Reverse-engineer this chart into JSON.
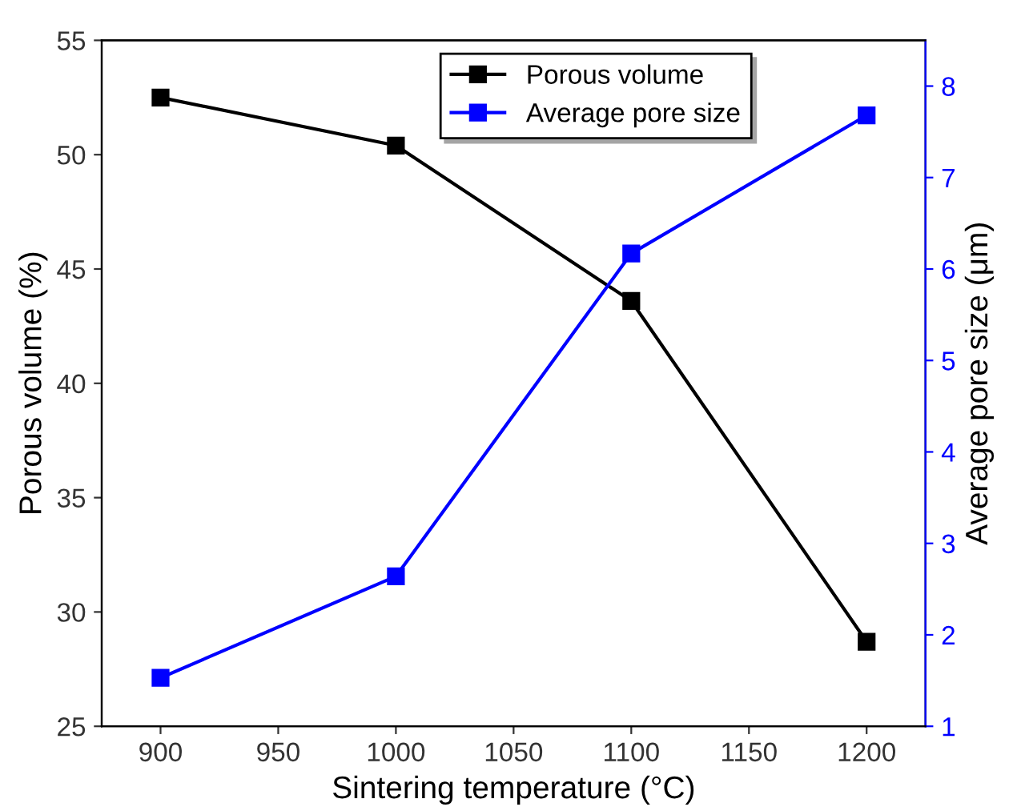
{
  "chart_data": {
    "type": "line",
    "xlabel": "Sintering temperature (°C)",
    "ylabel": "Porous volume (%)",
    "y2label": "Average pore size (μm)",
    "x": [
      900,
      1000,
      1100,
      1200
    ],
    "series": [
      {
        "name": "Porous volume",
        "color": "#000000",
        "values": [
          52.5,
          50.4,
          43.6,
          28.7
        ]
      },
      {
        "name": "Average pore size",
        "color": "#0000ff",
        "axis": "y2",
        "values": [
          1.53,
          2.64,
          6.17,
          7.68
        ]
      }
    ],
    "xlim": [
      875,
      1225
    ],
    "xticks": [
      900,
      950,
      1000,
      1050,
      1100,
      1150,
      1200
    ],
    "ylim": [
      25,
      55
    ],
    "yticks": [
      25,
      30,
      35,
      40,
      45,
      50,
      55
    ],
    "y2lim": [
      1,
      8.5
    ],
    "y2ticks": [
      1,
      2,
      3,
      4,
      5,
      6,
      7,
      8
    ],
    "marker": "square",
    "line_style": "solid",
    "grid": false,
    "legend": "top"
  }
}
